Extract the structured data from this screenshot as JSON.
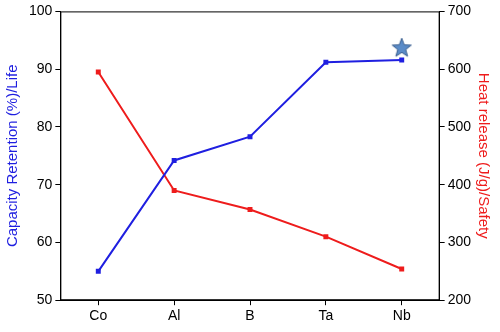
{
  "chart_data": {
    "type": "line",
    "categories": [
      "Co",
      "Al",
      "B",
      "Ta",
      "Nb"
    ],
    "y_label": "Capacity Retention (%)/Life",
    "y2_label": "Heat release (J/g)/Safety",
    "ylim": [
      50,
      100
    ],
    "yticks": [
      50,
      60,
      70,
      80,
      90,
      100
    ],
    "y2lim": [
      200,
      700
    ],
    "y2ticks": [
      200,
      300,
      400,
      500,
      600,
      700
    ],
    "grid": false,
    "series": [
      {
        "color": "#1f1fe0",
        "marker": "square",
        "line_style": "solid",
        "values": [
          55.0,
          74.2,
          78.3,
          91.2,
          91.6
        ]
      },
      {
        "color": "#ee1c1c",
        "marker": "square",
        "line_style": "solid",
        "axis": "y2",
        "values": [
          595,
          390,
          357,
          310,
          254
        ]
      },
      {
        "color": "#5b8cc8",
        "marker": "star",
        "line_style": "none",
        "values": [
          null,
          null,
          null,
          null,
          93.8
        ]
      }
    ]
  }
}
